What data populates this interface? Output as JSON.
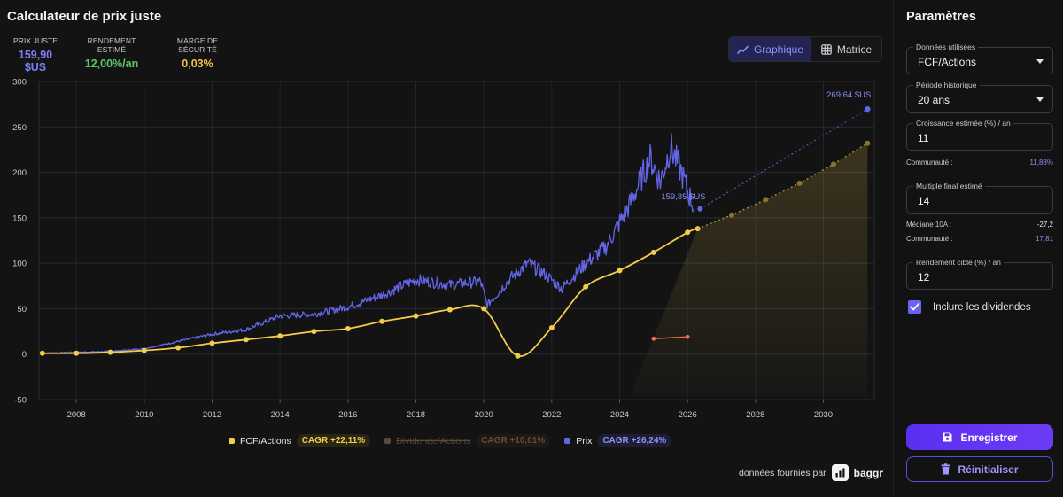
{
  "app": {
    "title": "Calculateur de prix juste"
  },
  "metrics": {
    "fair_price": {
      "label": "PRIX JUSTE",
      "value": "159,90 $US"
    },
    "yield": {
      "label": "RENDEMENT ESTIMÉ",
      "value": "12,00%/an"
    },
    "margin": {
      "label": "MARGE DE SÉCURITÉ",
      "value": "0,03%"
    }
  },
  "view_toggle": {
    "graph_label": "Graphique",
    "matrix_label": "Matrice",
    "active": "graph"
  },
  "chart_data": {
    "type": "line",
    "ylim": [
      -50,
      300
    ],
    "yticks": [
      "300",
      "250",
      "200",
      "150",
      "100",
      "50",
      "0",
      "-50"
    ],
    "xlim": [
      2006.9,
      2031.5
    ],
    "xticks": [
      "2008",
      "2010",
      "2012",
      "2014",
      "2016",
      "2018",
      "2020",
      "2022",
      "2024",
      "2026",
      "2028",
      "2030"
    ],
    "grid": true,
    "series": [
      {
        "name": "FCF/Actions",
        "color": "#f4cc4a",
        "points": [
          [
            2007.0,
            1
          ],
          [
            2008.0,
            1
          ],
          [
            2009.0,
            2
          ],
          [
            2010.0,
            4
          ],
          [
            2011.0,
            7
          ],
          [
            2012.0,
            12
          ],
          [
            2013.0,
            16
          ],
          [
            2014.0,
            20
          ],
          [
            2015.0,
            25
          ],
          [
            2016.0,
            28
          ],
          [
            2017.0,
            36
          ],
          [
            2018.0,
            42
          ],
          [
            2019.0,
            49
          ],
          [
            2020.0,
            50
          ],
          [
            2021.0,
            -2
          ],
          [
            2022.0,
            29
          ],
          [
            2023.0,
            74
          ],
          [
            2024.0,
            92
          ],
          [
            2025.0,
            112
          ],
          [
            2026.0,
            134
          ],
          [
            2026.3,
            138
          ]
        ],
        "projection": [
          [
            2026.3,
            138
          ],
          [
            2027.3,
            153
          ],
          [
            2028.3,
            170
          ],
          [
            2029.3,
            188
          ],
          [
            2030.3,
            209
          ],
          [
            2031.3,
            232
          ]
        ]
      },
      {
        "name": "Dividende/Actions",
        "color": "#e2714e",
        "hidden": true,
        "points": [
          [
            2025.0,
            17
          ],
          [
            2026.0,
            19
          ]
        ]
      },
      {
        "name": "Prix",
        "color": "#6366e8",
        "anchors": [
          [
            2007.0,
            1
          ],
          [
            2008.0,
            2
          ],
          [
            2009.0,
            3
          ],
          [
            2010.0,
            6
          ],
          [
            2011.0,
            14
          ],
          [
            2012.0,
            22
          ],
          [
            2013.0,
            27
          ],
          [
            2014.0,
            42
          ],
          [
            2015.0,
            44
          ],
          [
            2016.0,
            52
          ],
          [
            2017.0,
            65
          ],
          [
            2018.0,
            82
          ],
          [
            2019.0,
            76
          ],
          [
            2019.9,
            80
          ],
          [
            2020.1,
            54
          ],
          [
            2020.8,
            84
          ],
          [
            2021.3,
            100
          ],
          [
            2021.8,
            88
          ],
          [
            2022.3,
            72
          ],
          [
            2023.0,
            100
          ],
          [
            2023.6,
            118
          ],
          [
            2024.3,
            165
          ],
          [
            2024.9,
            215
          ],
          [
            2025.2,
            190
          ],
          [
            2025.5,
            228
          ],
          [
            2025.8,
            202
          ],
          [
            2026.0,
            180
          ],
          [
            2026.2,
            160
          ]
        ],
        "current_point": [
          2026.37,
          159.85
        ],
        "current_label": "159,85 $US",
        "projection_end": [
          2031.3,
          269.64
        ],
        "projection_label": "269,64 $US"
      }
    ]
  },
  "legend": [
    {
      "name": "FCF/Actions",
      "cagr": "CAGR +22,11%",
      "color": "#f4cc4a",
      "cagr_color": "#f4cc4a",
      "cagr_bg": "#2a2615"
    },
    {
      "name": "Dividende/Actions",
      "cagr": "CAGR +10,01%",
      "color": "#5a4a3c",
      "cagr_color": "#6b4a38",
      "cagr_bg": "#1c1917"
    },
    {
      "name": "Prix",
      "cagr": "CAGR +26,24%",
      "color": "#6366e8",
      "cagr_color": "#8a8ff5",
      "cagr_bg": "#1e1e33"
    }
  ],
  "credit": {
    "text": "données fournies par",
    "brand": "baggr"
  },
  "params": {
    "title": "Paramètres",
    "data_used": {
      "label": "Données utilisées",
      "value": "FCF/Actions"
    },
    "period": {
      "label": "Période historique",
      "value": "20 ans"
    },
    "growth": {
      "label": "Croissance estimée (%) / an",
      "value": "11"
    },
    "growth_community": {
      "label": "Communauté :",
      "value": "11,88%"
    },
    "multiple": {
      "label": "Multiple final estimé",
      "value": "14"
    },
    "median": {
      "label": "Médiane 10A :",
      "value": "-27,2"
    },
    "multiple_community": {
      "label": "Communauté :",
      "value": "17,81"
    },
    "target": {
      "label": "Rendement cible (%) / an",
      "value": "12"
    },
    "dividends": {
      "label": "Inclure les dividendes",
      "checked": true
    },
    "save_label": "Enregistrer",
    "reset_label": "Réinitialiser"
  }
}
